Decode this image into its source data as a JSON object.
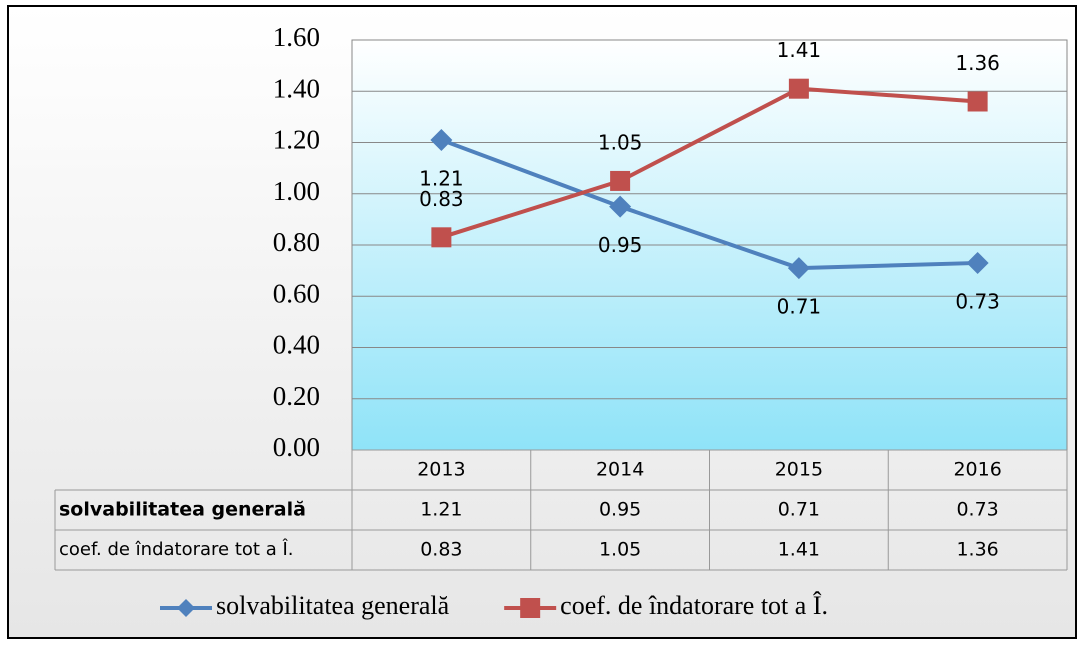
{
  "chart_data": {
    "type": "line",
    "categories": [
      "2013",
      "2014",
      "2015",
      "2016"
    ],
    "series": [
      {
        "name": "solvabilitatea generală",
        "color": "#4f81bd",
        "marker": "diamond",
        "values": [
          1.21,
          0.95,
          0.71,
          0.73
        ]
      },
      {
        "name": "coef. de îndatorare tot a Î.",
        "color": "#c0504d",
        "marker": "square",
        "values": [
          0.83,
          1.05,
          1.41,
          1.36
        ]
      }
    ],
    "ylim": [
      0,
      1.6
    ],
    "yticks": [
      {
        "value": 0,
        "label": "0.00"
      },
      {
        "value": 0.2,
        "label": "0.20"
      },
      {
        "value": 0.4,
        "label": "0.40"
      },
      {
        "value": 0.6,
        "label": "0.60"
      },
      {
        "value": 0.8,
        "label": "0.80"
      },
      {
        "value": 1,
        "label": "1.00"
      },
      {
        "value": 1.2,
        "label": "1.20"
      },
      {
        "value": 1.4,
        "label": "1.40"
      },
      {
        "value": 1.6,
        "label": "1.60"
      }
    ],
    "grid": true,
    "data_table": true,
    "legend": "bottom"
  }
}
